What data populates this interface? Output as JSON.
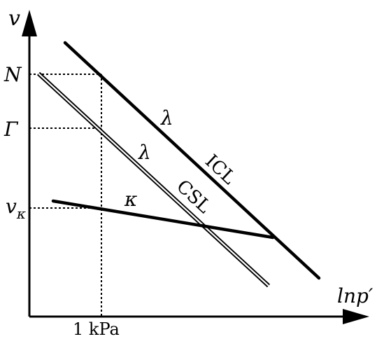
{
  "axes": {
    "y_label": "v",
    "x_label": "lnp′"
  },
  "y_ticks": {
    "n": "N",
    "gamma": "Γ",
    "v_kappa_main": "v",
    "v_kappa_sub": "κ"
  },
  "x_tick": "1 kPa",
  "lines": {
    "icl": "ICL",
    "csl": "CSL",
    "icl_slope": "λ",
    "csl_slope": "λ",
    "url_slope": "κ"
  }
}
